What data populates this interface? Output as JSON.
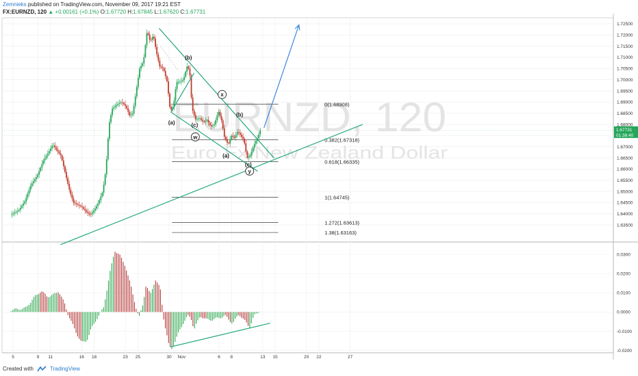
{
  "header": {
    "author": "Zemnieks",
    "published": "published on TradingView.com, November 09, 2017 19:21 EST",
    "symbol": "FX:EURNZD, 120",
    "change_arrow": "▲",
    "change": "+0.00161 (+0.1%)",
    "o_label": "O:",
    "o_value": "1.67720",
    "h_label": "H:",
    "h_value": "1.67845",
    "l_label": "L:",
    "l_value": "1.67620",
    "c_label": "C:",
    "c_value": "1.67731"
  },
  "watermark": {
    "symbol": "EURNZD, 120",
    "name": "Euro Fx/New Zealand Dollar"
  },
  "footer": {
    "created_with": "Created with",
    "brand": "TradingView"
  },
  "colors": {
    "up": "#26a65b",
    "down": "#c0392b",
    "trendline": "#23a77f",
    "projection": "#3b86e0",
    "current_price_bg": "#26a65b",
    "macd_up": "#2fa84f",
    "macd_down": "#b53a3a"
  },
  "chart_data": [
    {
      "type": "candlestick",
      "instrument": "FX:EURNZD",
      "interval": "120",
      "ylim": [
        1.628,
        1.7265
      ],
      "price_ticks": [
        "1.72500",
        "1.72000",
        "1.71500",
        "1.71000",
        "1.70500",
        "1.70000",
        "1.69500",
        "1.69000",
        "1.68500",
        "1.68000",
        "1.67500",
        "1.67000",
        "1.66500",
        "1.66000",
        "1.65500",
        "1.65000",
        "1.64500",
        "1.64000",
        "1.63500"
      ],
      "current_price": "1.67731",
      "countdown": "01:38:40",
      "x_ticks": [
        {
          "label": "5",
          "day": 0
        },
        {
          "label": "9",
          "day": 4
        },
        {
          "label": "11",
          "day": 6
        },
        {
          "label": "16",
          "day": 11
        },
        {
          "label": "18",
          "day": 13
        },
        {
          "label": "23",
          "day": 18
        },
        {
          "label": "25",
          "day": 20
        },
        {
          "label": "30",
          "day": 25
        },
        {
          "label": "Nov",
          "day": 27
        },
        {
          "label": "6",
          "day": 33
        },
        {
          "label": "8",
          "day": 35
        },
        {
          "label": "13",
          "day": 40
        },
        {
          "label": "15",
          "day": 42
        },
        {
          "label": "20",
          "day": 47
        },
        {
          "label": "22",
          "day": 49
        },
        {
          "label": "27",
          "day": 54
        }
      ],
      "price_path": [
        [
          -0.3,
          1.6395
        ],
        [
          1,
          1.6415
        ],
        [
          2,
          1.6455
        ],
        [
          3,
          1.653
        ],
        [
          4,
          1.657
        ],
        [
          5,
          1.664
        ],
        [
          5.8,
          1.6675
        ],
        [
          6.5,
          1.671
        ],
        [
          7,
          1.669
        ],
        [
          7.8,
          1.666
        ],
        [
          8.5,
          1.658
        ],
        [
          9.2,
          1.65
        ],
        [
          9.8,
          1.645
        ],
        [
          10.5,
          1.644
        ],
        [
          11.2,
          1.643
        ],
        [
          11.8,
          1.641
        ],
        [
          12.5,
          1.6395
        ],
        [
          13.2,
          1.642
        ],
        [
          13.8,
          1.645
        ],
        [
          14.5,
          1.65
        ],
        [
          15,
          1.66
        ],
        [
          15.5,
          1.68
        ],
        [
          16,
          1.687
        ],
        [
          16.8,
          1.689
        ],
        [
          17.5,
          1.69
        ],
        [
          18.2,
          1.688
        ],
        [
          18.8,
          1.684
        ],
        [
          19.3,
          1.685
        ],
        [
          19.9,
          1.696
        ],
        [
          20.4,
          1.705
        ],
        [
          21,
          1.708
        ],
        [
          21.6,
          1.722
        ],
        [
          22.1,
          1.717
        ],
        [
          22.6,
          1.72
        ],
        [
          23.1,
          1.712
        ],
        [
          23.6,
          1.706
        ],
        [
          24.2,
          1.705
        ],
        [
          24.8,
          1.699
        ],
        [
          25.3,
          1.686
        ],
        [
          25.8,
          1.688
        ],
        [
          26.3,
          1.699
        ],
        [
          26.8,
          1.699
        ],
        [
          27.4,
          1.7
        ],
        [
          28,
          1.706
        ],
        [
          28.4,
          1.704
        ],
        [
          28.8,
          1.687
        ],
        [
          29.4,
          1.682
        ],
        [
          30,
          1.683
        ],
        [
          30.6,
          1.681
        ],
        [
          31.2,
          1.682
        ],
        [
          31.8,
          1.679
        ],
        [
          32.4,
          1.68
        ],
        [
          33,
          1.686
        ],
        [
          33.5,
          1.682
        ],
        [
          34,
          1.674
        ],
        [
          34.6,
          1.671
        ],
        [
          35.1,
          1.675
        ],
        [
          35.6,
          1.674
        ],
        [
          36.1,
          1.677
        ],
        [
          36.6,
          1.675
        ],
        [
          37.1,
          1.673
        ],
        [
          37.6,
          1.665
        ],
        [
          38.1,
          1.666
        ],
        [
          38.5,
          1.669
        ],
        [
          38.9,
          1.672
        ],
        [
          39.3,
          1.674
        ],
        [
          39.7,
          1.6773
        ]
      ],
      "fibonacci": [
        {
          "label": "0(1.68908)",
          "price": 1.68908,
          "day_start": 26,
          "day_end": 39.2
        },
        {
          "label": "0.382(1.67318)",
          "price": 1.67318,
          "day_start": 26,
          "day_end": 39.2
        },
        {
          "label": "0.618(1.66335)",
          "price": 1.66335,
          "day_start": 26,
          "day_end": 39.2
        },
        {
          "label": "1(1.64745)",
          "price": 1.64745,
          "day_start": 26,
          "day_end": 39.2
        },
        {
          "label": "1.272(1.63613)",
          "price": 1.63613,
          "day_start": 26,
          "day_end": 39.2
        },
        {
          "label": "1.38(1.63163)",
          "price": 1.63163,
          "day_start": 26,
          "day_end": 39.2
        }
      ],
      "wave_labels": [
        {
          "label": "(b)",
          "day": 28.1,
          "price": 1.709,
          "circled": false
        },
        {
          "label": "(a)",
          "day": 25.4,
          "price": 1.68,
          "circled": false
        },
        {
          "label": "(c)",
          "day": 29.1,
          "price": 1.679,
          "circled": false
        },
        {
          "label": "x",
          "day": 33.5,
          "price": 1.6925,
          "circled": true
        },
        {
          "label": "(b)",
          "day": 36.3,
          "price": 1.6835,
          "circled": false
        },
        {
          "label": "w",
          "day": 29.2,
          "price": 1.6735,
          "circled": true
        },
        {
          "label": "(a)",
          "day": 34.1,
          "price": 1.6652,
          "circled": false
        },
        {
          "label": "(c)",
          "day": 37.7,
          "price": 1.6612,
          "circled": false
        },
        {
          "label": "y",
          "day": 37.9,
          "price": 1.6582,
          "circled": true
        }
      ],
      "trendlines": [
        {
          "from": [
            7.6,
            1.6262
          ],
          "to": [
            56,
            1.68
          ],
          "color": "trendline"
        },
        {
          "from": [
            23.4,
            1.723
          ],
          "to": [
            41.8,
            1.665
          ],
          "color": "trendline"
        },
        {
          "from": [
            25.3,
            1.6855
          ],
          "to": [
            39.2,
            1.659
          ],
          "color": "trendline"
        },
        {
          "from": [
            25.3,
            1.6855
          ],
          "to": [
            29,
            1.703
          ],
          "color": "trendline"
        },
        {
          "from": [
            40.2,
            1.6785
          ],
          "to": [
            45.8,
            1.7245
          ],
          "color": "projection",
          "arrow": true
        }
      ]
    },
    {
      "type": "histogram",
      "indicator": "MACD histogram",
      "ylim": [
        -0.0205,
        0.035
      ],
      "y_ticks": [
        "0.0300",
        "0.0200",
        "0.0100",
        "0.0000",
        "-0.0100",
        "-0.0200"
      ],
      "shape": [
        [
          -0.3,
          0.001
        ],
        [
          2,
          0.002
        ],
        [
          3.5,
          0.008
        ],
        [
          4.5,
          0.011
        ],
        [
          5.5,
          0.008
        ],
        [
          6.5,
          0.009
        ],
        [
          7.3,
          0.011
        ],
        [
          8.3,
          0.004
        ],
        [
          8.8,
          -0.001
        ],
        [
          10,
          -0.01
        ],
        [
          11,
          -0.016
        ],
        [
          11.8,
          -0.015
        ],
        [
          12.5,
          -0.009
        ],
        [
          13.5,
          -0.003
        ],
        [
          14.5,
          0.002
        ],
        [
          15.5,
          0.02
        ],
        [
          16.3,
          0.032
        ],
        [
          17,
          0.03
        ],
        [
          18,
          0.024
        ],
        [
          19,
          0.012
        ],
        [
          19.8,
          0.001
        ],
        [
          20.2,
          -0.003
        ],
        [
          20.8,
          0.004
        ],
        [
          21.3,
          0.014
        ],
        [
          22,
          0.009
        ],
        [
          22.8,
          0.017
        ],
        [
          23.6,
          0.012
        ],
        [
          24.2,
          -0.005
        ],
        [
          25,
          -0.018
        ],
        [
          25.5,
          -0.019
        ],
        [
          26.5,
          -0.011
        ],
        [
          27.2,
          -0.006
        ],
        [
          28,
          -0.002
        ],
        [
          28.5,
          -0.003
        ],
        [
          29,
          -0.009
        ],
        [
          30,
          -0.002
        ],
        [
          31,
          -0.004
        ],
        [
          32,
          -0.004
        ],
        [
          33,
          -0.003
        ],
        [
          34,
          -0.002
        ],
        [
          35.2,
          -0.006
        ],
        [
          36.2,
          -0.001
        ],
        [
          37.2,
          -0.005
        ],
        [
          37.9,
          -0.008
        ],
        [
          38.6,
          -0.002
        ],
        [
          39.7,
          0.001
        ]
      ],
      "trendline": {
        "from": [
          25.2,
          -0.0182
        ],
        "to": [
          41.2,
          -0.0058
        ]
      }
    }
  ]
}
